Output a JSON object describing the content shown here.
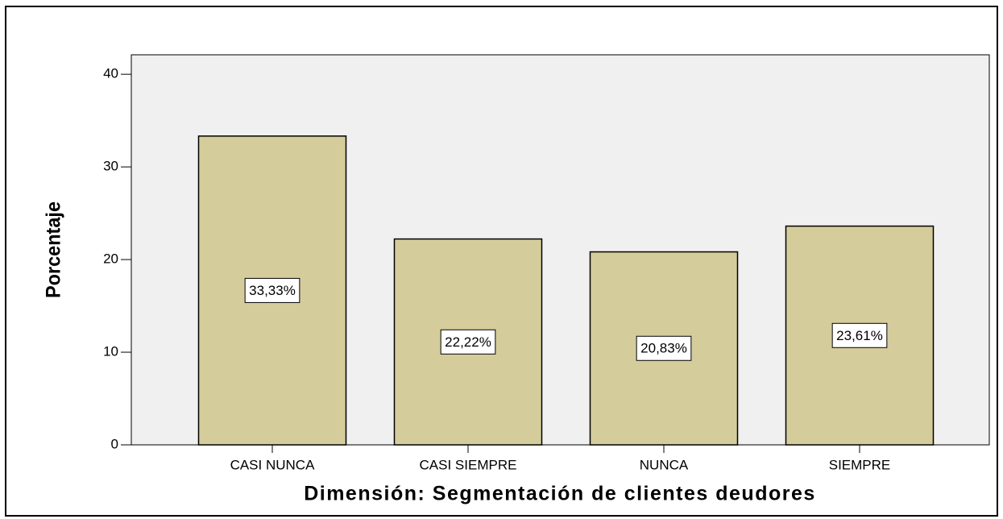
{
  "chart_data": {
    "type": "bar",
    "x_label": "Dimensión: Segmentación de clientes deudores",
    "y_label": "Porcentaje",
    "categories": [
      "CASI NUNCA",
      "CASI SIEMPRE",
      "NUNCA",
      "SIEMPRE"
    ],
    "values": [
      33.33,
      22.22,
      20.83,
      23.61
    ],
    "value_labels": [
      "33,33%",
      "22,22%",
      "20,83%",
      "23,61%"
    ],
    "color": "#d4cc9b",
    "ylim": [
      0,
      42.1
    ],
    "yticks": [
      0,
      10,
      20,
      30,
      40
    ],
    "grid": false
  }
}
